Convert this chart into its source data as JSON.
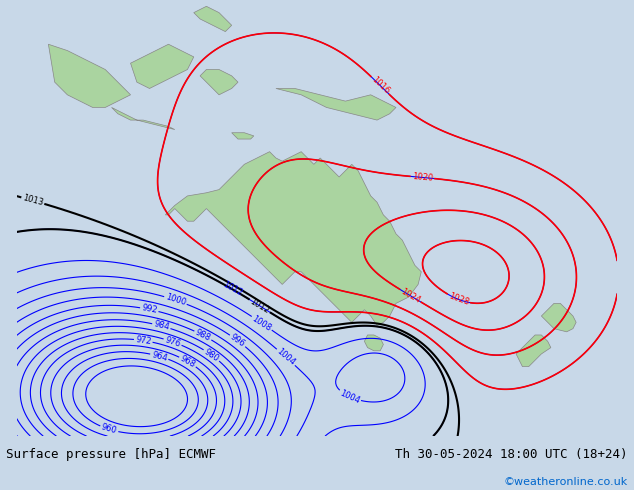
{
  "title_left": "Surface pressure [hPa] ECMWF",
  "title_right": "Th 30-05-2024 18:00 UTC (18+24)",
  "credit": "©weatheronline.co.uk",
  "background_color": "#c8d8e8",
  "land_color": "#aad4a0",
  "australia_color": "#b8ddb0",
  "text_color_black": "#000000",
  "text_color_blue": "#0000cc",
  "credit_color": "#0066cc",
  "footer_bg": "#e8e8e8",
  "figsize": [
    6.34,
    4.9
  ],
  "dpi": 100
}
